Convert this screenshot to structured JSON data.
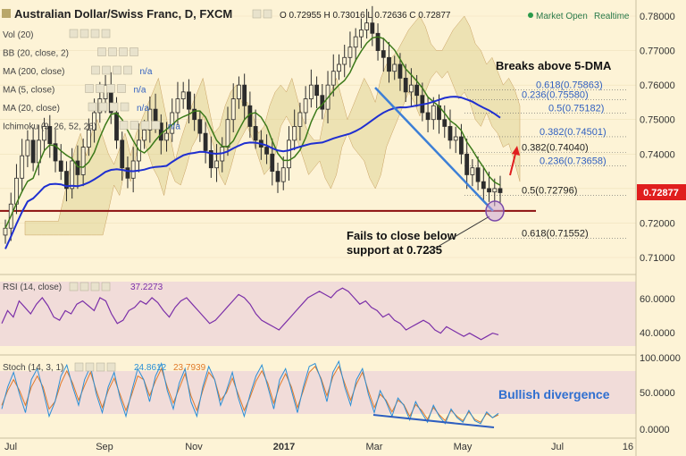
{
  "header": {
    "title": "Australian Dollar/Swiss Franc, D, FXCM",
    "ohlc": "O 0.72955 H 0.73016 L 0.72636 C 0.72877",
    "status": "Market Open",
    "mode": "Realtime",
    "indicators": [
      {
        "name": "Vol (20)",
        "value": ""
      },
      {
        "name": "BB (20, close, 2)",
        "value": ""
      },
      {
        "name": "MA (200, close)",
        "value": "n/a"
      },
      {
        "name": "MA (5, close)",
        "value": "n/a"
      },
      {
        "name": "MA (20, close)",
        "value": "n/a"
      },
      {
        "name": "Ichimoku (9, 26, 52, 26)",
        "value": "n/a"
      }
    ]
  },
  "colors": {
    "background": "#fdf3d6",
    "candle": "#2c2c2c",
    "ma200": "#1f2fd0",
    "ma20": "#3c7a1a",
    "trendline": "#3d7fd6",
    "support": "#8b0f0f",
    "rsi": "#7b2fa8",
    "stoch_k": "#2a8fd6",
    "stoch_d": "#e07a2a",
    "fib": "#2f5fc0",
    "price_badge": "#e01e1e"
  },
  "price_axis": {
    "ticks": [
      "0.78000",
      "0.77000",
      "0.76000",
      "0.75000",
      "0.74000",
      "0.73000",
      "0.72000",
      "0.71000"
    ],
    "current": "0.72877"
  },
  "rsi_panel": {
    "label": "RSI (14, close)",
    "value": "37.2273",
    "ticks": [
      "60.0000",
      "40.0000"
    ]
  },
  "stoch_panel": {
    "label": "Stoch (14, 3, 1)",
    "k_value": "24.8612",
    "d_value": "23.7939",
    "ticks": [
      "100.0000",
      "50.0000",
      "0.0000"
    ]
  },
  "x_axis": {
    "labels": [
      "Jul",
      "Sep",
      "Nov",
      "2017",
      "Mar",
      "May",
      "Jul",
      "16"
    ]
  },
  "annotations": {
    "breaks": "Breaks above 5-DMA",
    "fails_line1": "Fails to close below",
    "fails_line2": "support at 0.7235",
    "divergence": "Bullish divergence"
  },
  "fib_levels": [
    {
      "label": "0.618(0.75863)",
      "price": 0.75863
    },
    {
      "label": "0.236(0.75580)",
      "price": 0.7558
    },
    {
      "label": "0.5(0.75182)",
      "price": 0.75182
    },
    {
      "label": "0.382(0.74501)",
      "price": 0.74501
    },
    {
      "label": "0.382(0.74040)",
      "price": 0.7404
    },
    {
      "label": "0.236(0.73658)",
      "price": 0.73658
    },
    {
      "label": "0.5(0.72796)",
      "price": 0.72796
    },
    {
      "label": "0.618(0.71552)",
      "price": 0.71552
    }
  ],
  "chart_data": {
    "type": "line",
    "title": "Australian Dollar/Swiss Franc, D, FXCM",
    "ylim": [
      0.705,
      0.785
    ],
    "support": 0.7235,
    "series": [
      {
        "values": [
          0.7185,
          0.7255,
          0.733,
          0.7395,
          0.744,
          0.7375,
          0.744,
          0.748,
          0.743,
          0.738,
          0.735,
          0.73,
          0.738,
          0.734,
          0.742,
          0.747,
          0.752,
          0.756,
          0.76,
          0.752,
          0.744,
          0.736,
          0.733,
          0.738,
          0.744,
          0.747,
          0.753,
          0.749,
          0.744,
          0.746,
          0.752,
          0.756,
          0.758,
          0.753,
          0.75,
          0.746,
          0.741,
          0.736,
          0.738,
          0.742,
          0.75,
          0.756,
          0.76,
          0.754,
          0.748,
          0.744,
          0.742,
          0.74,
          0.735,
          0.732,
          0.736,
          0.744,
          0.748,
          0.752,
          0.756,
          0.76,
          0.757,
          0.753,
          0.76,
          0.764,
          0.766,
          0.768,
          0.771,
          0.774,
          0.776,
          0.778,
          0.775,
          0.77,
          0.768,
          0.764,
          0.766,
          0.762,
          0.758,
          0.76,
          0.757,
          0.752,
          0.75,
          0.754,
          0.75,
          0.748,
          0.744,
          0.745,
          0.74,
          0.734,
          0.736,
          0.732,
          0.73,
          0.729,
          0.73,
          0.7288
        ]
      }
    ],
    "rsi_values": [
      44,
      52,
      48,
      58,
      54,
      50,
      56,
      60,
      55,
      48,
      46,
      52,
      50,
      56,
      58,
      55,
      52,
      60,
      58,
      50,
      44,
      46,
      52,
      54,
      58,
      56,
      60,
      57,
      52,
      48,
      54,
      58,
      60,
      56,
      52,
      48,
      44,
      46,
      50,
      54,
      58,
      62,
      60,
      56,
      50,
      46,
      44,
      42,
      40,
      44,
      48,
      52,
      56,
      60,
      62,
      64,
      62,
      60,
      64,
      66,
      64,
      60,
      56,
      58,
      54,
      52,
      48,
      50,
      46,
      44,
      40,
      42,
      44,
      46,
      44,
      40,
      38,
      42,
      40,
      38,
      36,
      38,
      36,
      34,
      36,
      38,
      37
    ],
    "stoch_k": [
      30,
      60,
      80,
      50,
      25,
      70,
      85,
      55,
      20,
      40,
      75,
      90,
      60,
      35,
      70,
      88,
      50,
      25,
      60,
      80,
      45,
      20,
      55,
      85,
      70,
      40,
      75,
      92,
      55,
      30,
      65,
      85,
      40,
      20,
      60,
      88,
      70,
      35,
      55,
      80,
      45,
      20,
      50,
      75,
      90,
      60,
      30,
      70,
      85,
      55,
      25,
      60,
      88,
      92,
      70,
      40,
      80,
      95,
      60,
      35,
      70,
      85,
      50,
      25,
      55,
      40,
      20,
      45,
      35,
      15,
      40,
      25,
      12,
      35,
      20,
      10,
      30,
      18,
      12,
      28,
      14,
      10,
      26,
      18,
      24
    ],
    "stoch_d": [
      35,
      55,
      70,
      55,
      35,
      60,
      75,
      60,
      30,
      40,
      65,
      82,
      65,
      42,
      62,
      80,
      55,
      32,
      55,
      72,
      50,
      28,
      50,
      75,
      70,
      48,
      68,
      85,
      60,
      38,
      58,
      78,
      48,
      28,
      55,
      80,
      70,
      42,
      52,
      72,
      50,
      28,
      46,
      68,
      82,
      65,
      38,
      62,
      78,
      60,
      32,
      55,
      80,
      88,
      72,
      48,
      74,
      88,
      65,
      42,
      64,
      80,
      55,
      32,
      50,
      42,
      26,
      42,
      36,
      20,
      36,
      28,
      16,
      32,
      22,
      14,
      28,
      20,
      14,
      26,
      16,
      12,
      24,
      18,
      22
    ]
  }
}
